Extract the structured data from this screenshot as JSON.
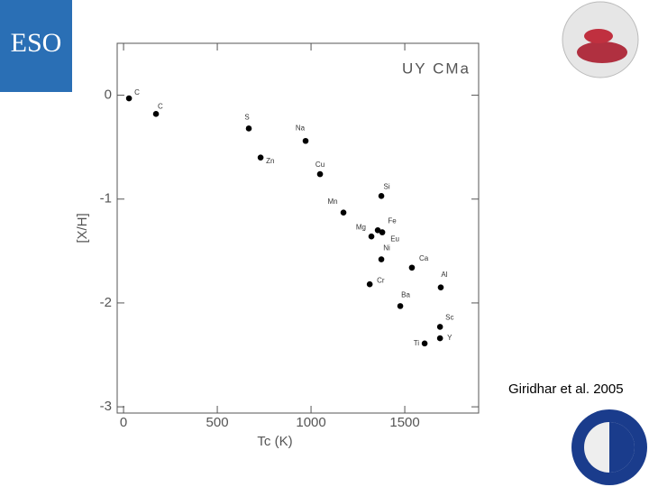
{
  "slide": {
    "citation": "Giridhar et al. 2005",
    "logo_text": "ESO"
  },
  "chart_data": {
    "type": "scatter",
    "title": "UY CMa",
    "x_label": "Tc (K)",
    "y_label": "[X/H]",
    "labels": [
      "C",
      "C",
      "S",
      "Na",
      "Zn",
      "Cu",
      "Si",
      "Mn",
      "Fe",
      "Mg",
      "Eu",
      "Ni",
      "Ca",
      "Cr",
      "Al",
      "Ba",
      "Sc",
      "Y",
      "Ti"
    ],
    "x": [
      29,
      173,
      668,
      971,
      731,
      1048,
      1375,
      1173,
      1356,
      1322,
      1380,
      1375,
      1538,
      1313,
      1692,
      1476,
      1688,
      1688,
      1606
    ],
    "values": [
      -0.03,
      -0.18,
      -0.32,
      -0.44,
      -0.6,
      -0.76,
      -0.97,
      -1.13,
      -1.3,
      -1.36,
      -1.32,
      -1.58,
      -1.66,
      -1.82,
      -1.85,
      -2.03,
      -2.23,
      -2.34,
      -2.39
    ],
    "color": "#000000",
    "xlim": [
      -34,
      1894
    ],
    "ylim": [
      -3.06,
      0.5
    ],
    "xticks": [
      0,
      500,
      1000,
      1500
    ],
    "yticks": [
      0,
      -1,
      -2,
      -3
    ],
    "grid": false
  }
}
